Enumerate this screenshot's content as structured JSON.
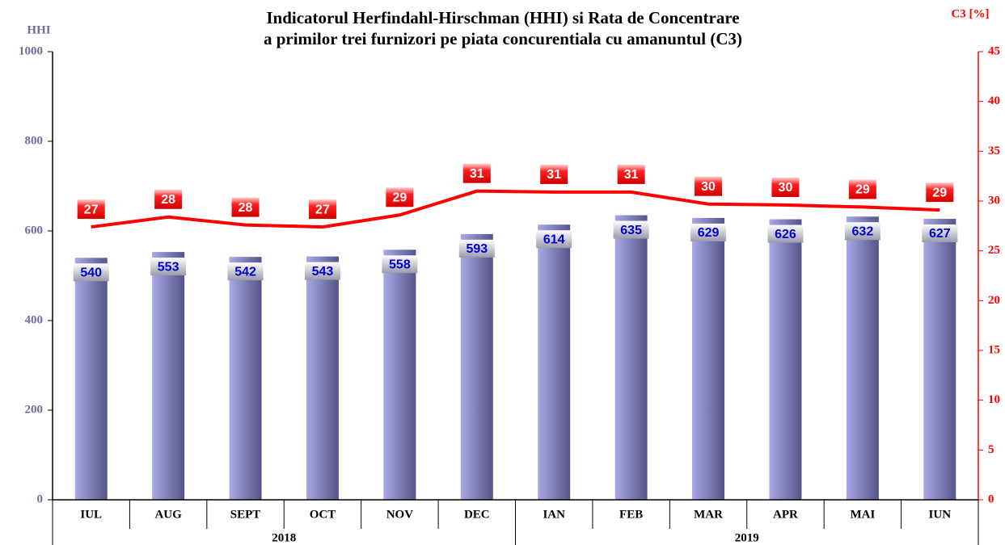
{
  "chart_data": {
    "type": "bar",
    "title": [
      "Indicatorul Herfindahl-Hirschman (HHI) si Rata de Concentrare",
      "a primilor trei furnizori pe piata concurentiala cu amanuntul (C3)"
    ],
    "ylabel": "HHI",
    "y2label": "C3 [%]",
    "categories": [
      "IUL",
      "AUG",
      "SEPT",
      "OCT",
      "NOV",
      "DEC",
      "IAN",
      "FEB",
      "MAR",
      "APR",
      "MAI",
      "IUN"
    ],
    "groups": [
      {
        "label": "2018",
        "count": 6
      },
      {
        "label": "2019",
        "count": 6
      }
    ],
    "series": [
      {
        "type": "bar",
        "color": "#a8a8e6",
        "label_color": "#0000cc",
        "values": [
          540,
          553,
          542,
          543,
          558,
          593,
          614,
          635,
          629,
          626,
          632,
          627
        ]
      },
      {
        "type": "line",
        "axis": "y2",
        "color": "#ff0000",
        "label_color": "#ffffff",
        "values": [
          27.4,
          28.4,
          27.6,
          27.4,
          28.6,
          31.0,
          30.9,
          30.9,
          29.7,
          29.6,
          29.4,
          29.1
        ],
        "value_labels": [
          "27",
          "28",
          "28",
          "27",
          "29",
          "31",
          "31",
          "31",
          "30",
          "30",
          "29",
          "29"
        ]
      }
    ],
    "ylim": [
      0,
      1000
    ],
    "yticks": [
      0,
      200,
      400,
      600,
      800,
      1000
    ],
    "ytick_color": "#6e6e9e",
    "y2lim": [
      0,
      45
    ],
    "y2ticks": [
      0,
      5,
      10,
      15,
      20,
      25,
      30,
      35,
      40,
      45
    ],
    "y2_color": "#ff0000"
  }
}
